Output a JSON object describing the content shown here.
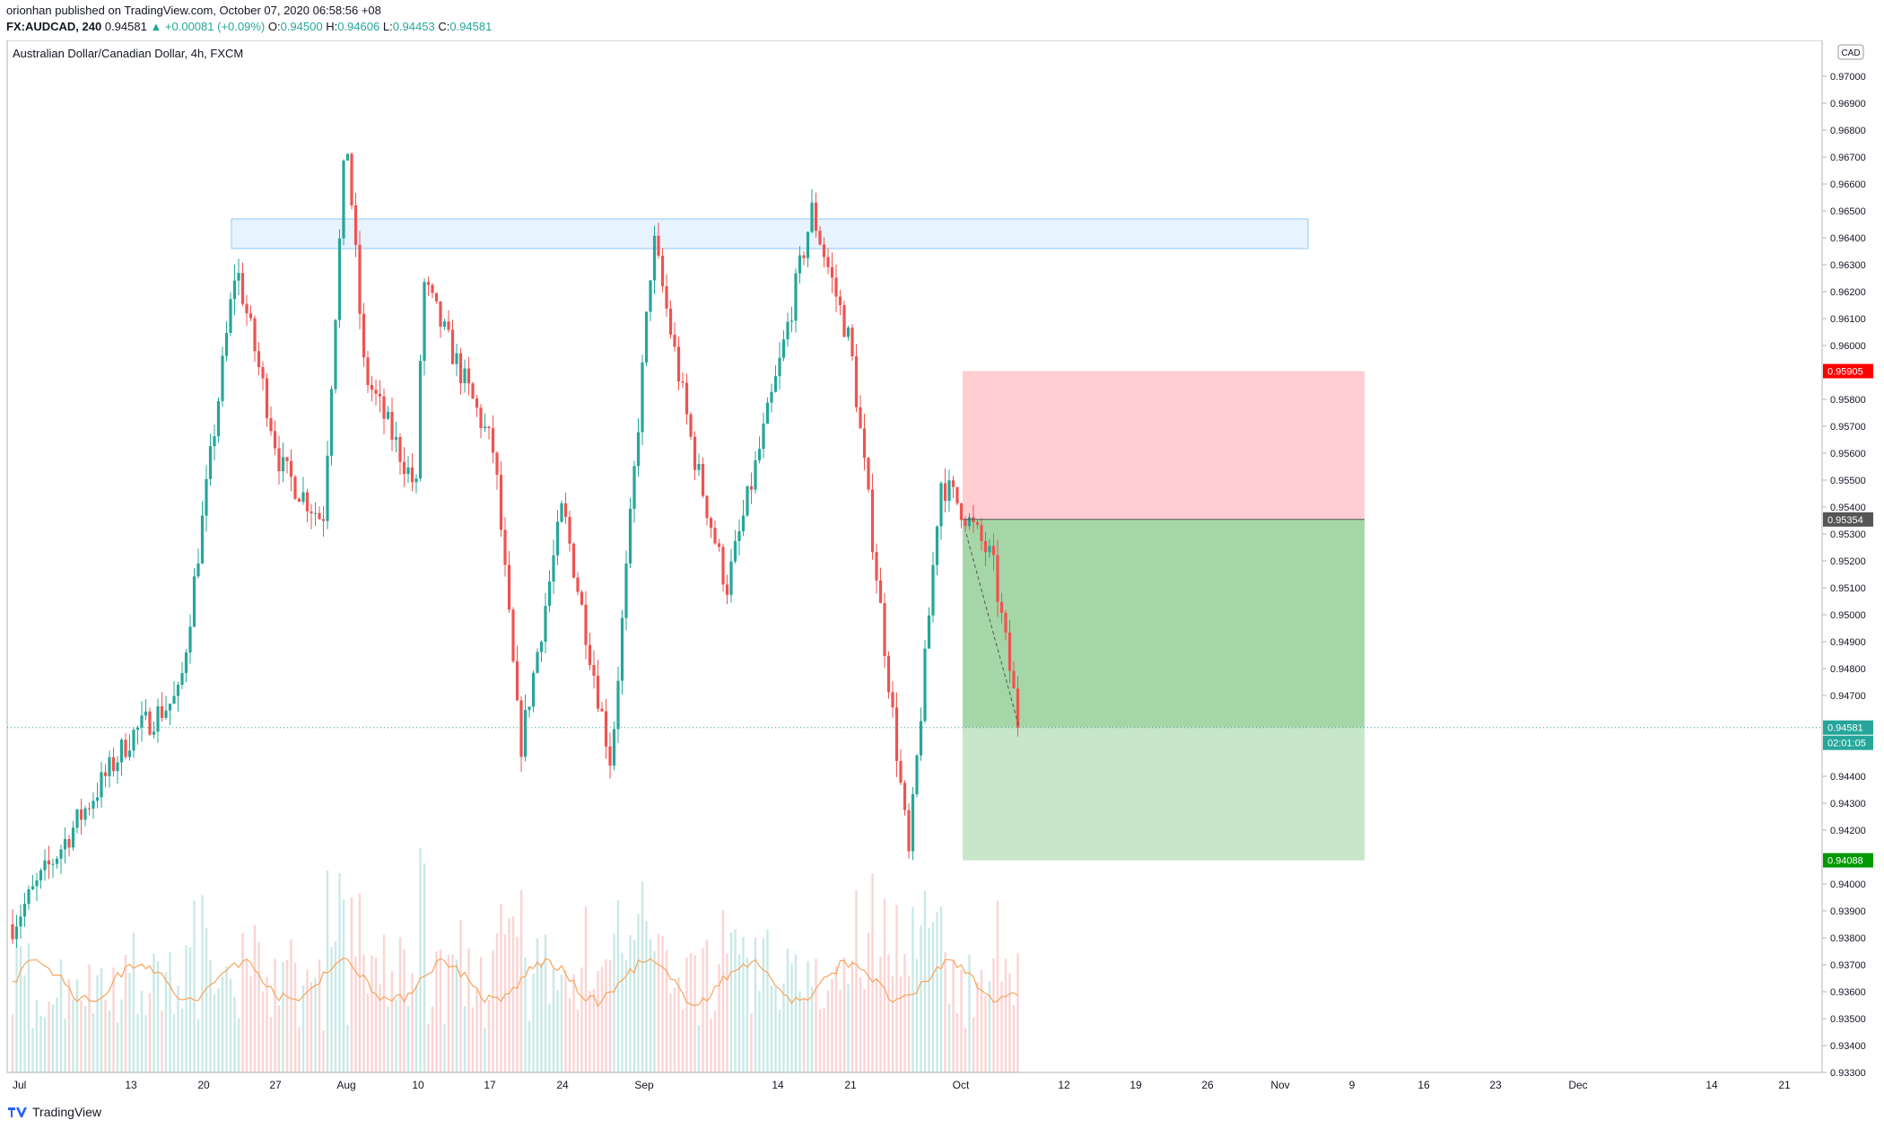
{
  "header": {
    "line1": "orionhan published on TradingView.com, October 07, 2020 06:58:56 +08",
    "symbol": "FX:AUDCAD, 240",
    "last": "0.94581",
    "change": "▲ +0.00081 (+0.09%)",
    "o_label": "O:",
    "o": "0.94500",
    "h_label": "H:",
    "h": "0.94606",
    "l_label": "L:",
    "l": "0.94453",
    "c_label": "C:",
    "c": "0.94581"
  },
  "chart_title": "Australian Dollar/Canadian Dollar, 4h, FXCM",
  "currency_badge": "CAD",
  "footer_brand": "TradingView",
  "colors": {
    "up": "#26a69a",
    "down": "#ef5350",
    "volume_ma": "#f7a45c",
    "zone": "#bbdefb",
    "stop": "#ffcdd2",
    "target": "#a5d6a7",
    "target_light": "#c8e6c9"
  },
  "chart_data": {
    "type": "candlestick",
    "title": "Australian Dollar/Canadian Dollar, 4h, FXCM",
    "y_ticks": [
      "0.97000",
      "0.96900",
      "0.96800",
      "0.96700",
      "0.96600",
      "0.96500",
      "0.96400",
      "0.96300",
      "0.96200",
      "0.96100",
      "0.96000",
      "0.95800",
      "0.95700",
      "0.95600",
      "0.95500",
      "0.95400",
      "0.95300",
      "0.95200",
      "0.95100",
      "0.95000",
      "0.94900",
      "0.94800",
      "0.94700",
      "0.94400",
      "0.94300",
      "0.94200",
      "0.94000",
      "0.93900",
      "0.93800",
      "0.93700",
      "0.93600",
      "0.93500",
      "0.93400",
      "0.93300"
    ],
    "ylim": [
      0.933,
      0.971
    ],
    "x_ticks": [
      "Jul",
      "13",
      "20",
      "27",
      "Aug",
      "10",
      "17",
      "24",
      "Sep",
      "14",
      "21",
      "Oct",
      "12",
      "19",
      "26",
      "Nov",
      "9",
      "16",
      "23",
      "Dec",
      "14",
      "21"
    ],
    "price_path": [
      [
        "Jul",
        0.9385
      ],
      [
        "13",
        0.9455
      ],
      [
        "20",
        0.947
      ],
      [
        "22",
        0.963
      ],
      [
        "24",
        0.9555
      ],
      [
        "27",
        0.9535
      ],
      [
        "30",
        0.968
      ],
      [
        "Aug",
        0.959
      ],
      [
        "3",
        0.9545
      ],
      [
        "10",
        0.9625
      ],
      [
        "11",
        0.956
      ],
      [
        "17",
        0.945
      ],
      [
        "20",
        0.954
      ],
      [
        "24",
        0.9445
      ],
      [
        "Sep",
        0.964
      ],
      [
        "3",
        0.956
      ],
      [
        "7",
        0.951
      ],
      [
        "14",
        0.959
      ],
      [
        "18",
        0.965
      ],
      [
        "21",
        0.96
      ],
      [
        "25",
        0.941
      ],
      [
        "28",
        0.955
      ],
      [
        "Oct",
        0.954
      ],
      [
        "5",
        0.952
      ],
      [
        "7",
        0.94581
      ]
    ],
    "resistance_zone": {
      "low": 0.9636,
      "high": 0.9647
    },
    "position": {
      "entry": 0.95354,
      "stop": 0.95905,
      "target": 0.94088
    },
    "price_labels": [
      {
        "text": "0.95905",
        "value": 0.95905,
        "color": "#ff0000"
      },
      {
        "text": "0.95354",
        "value": 0.95354,
        "color": "#555555"
      },
      {
        "text": "0.94581",
        "value": 0.94581,
        "color": "#26a69a"
      },
      {
        "text": "02:01:05",
        "value": 0.94512,
        "color": "#26a69a"
      },
      {
        "text": "0.94088",
        "value": 0.94088,
        "color": "#009900"
      }
    ],
    "grid": false
  }
}
